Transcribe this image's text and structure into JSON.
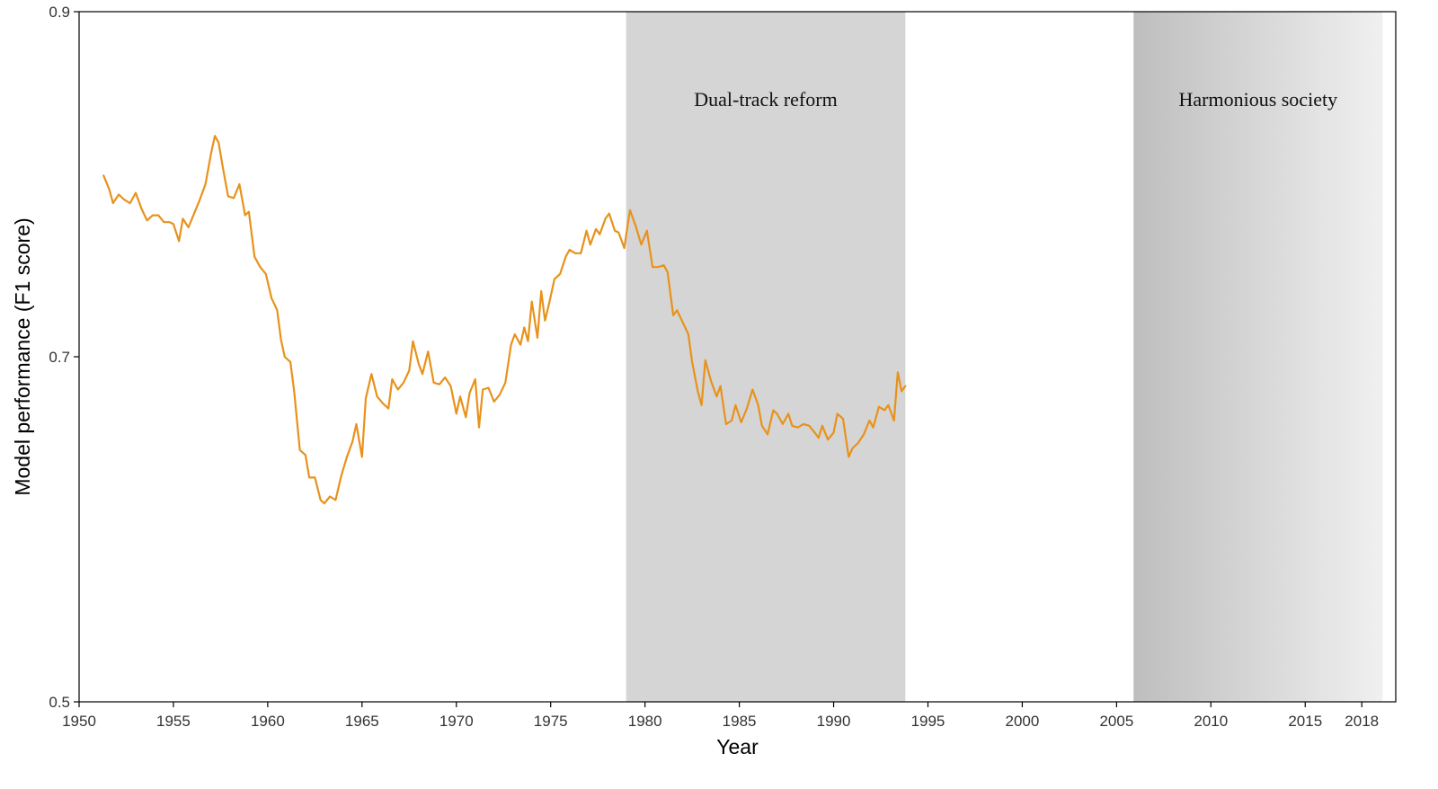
{
  "chart_data": {
    "type": "line",
    "title": "",
    "xlabel": "Year",
    "ylabel": "Model performance (F1 score)",
    "xlim": [
      1950,
      2019.8
    ],
    "ylim": [
      0.5,
      0.9
    ],
    "x_ticks": [
      1950,
      1955,
      1960,
      1965,
      1970,
      1975,
      1980,
      1985,
      1990,
      1995,
      2000,
      2005,
      2010,
      2015,
      2018
    ],
    "x_tick_labels": [
      "1950",
      "1955",
      "1960",
      "1965",
      "1970",
      "1975",
      "1980",
      "1985",
      "1990",
      "1995",
      "2000",
      "2005",
      "2010",
      "2015",
      "2018"
    ],
    "y_ticks": [
      0.5,
      0.7,
      0.9
    ],
    "y_tick_labels": [
      "0.5",
      "0.7",
      "0.9"
    ],
    "grid": false,
    "line_color": "#E8921B",
    "shaded_regions": [
      {
        "label": "Dual-track reform",
        "x_start": 1979,
        "x_end": 1993.8,
        "fill": "solid",
        "color": "#D5D5D5"
      },
      {
        "label": "Harmonious society",
        "x_start": 2005.9,
        "x_end": 2019.1,
        "fill": "gradient",
        "color_start": "#BEBEBE",
        "color_end": "#F0F0F0"
      }
    ],
    "series": [
      {
        "points": [
          [
            1951.3,
            0.805
          ],
          [
            1951.6,
            0.797
          ],
          [
            1951.8,
            0.789
          ],
          [
            1952.1,
            0.794
          ],
          [
            1952.4,
            0.791
          ],
          [
            1952.7,
            0.789
          ],
          [
            1953.0,
            0.795
          ],
          [
            1953.3,
            0.786
          ],
          [
            1953.6,
            0.779
          ],
          [
            1953.9,
            0.782
          ],
          [
            1954.2,
            0.782
          ],
          [
            1954.5,
            0.778
          ],
          [
            1954.8,
            0.778
          ],
          [
            1955.0,
            0.777
          ],
          [
            1955.3,
            0.767
          ],
          [
            1955.5,
            0.78
          ],
          [
            1955.8,
            0.775
          ],
          [
            1956.1,
            0.783
          ],
          [
            1956.4,
            0.791
          ],
          [
            1956.7,
            0.8
          ],
          [
            1957.0,
            0.818
          ],
          [
            1957.2,
            0.828
          ],
          [
            1957.4,
            0.824
          ],
          [
            1957.6,
            0.811
          ],
          [
            1957.9,
            0.793
          ],
          [
            1958.2,
            0.792
          ],
          [
            1958.5,
            0.8
          ],
          [
            1958.8,
            0.782
          ],
          [
            1959.0,
            0.784
          ],
          [
            1959.3,
            0.758
          ],
          [
            1959.6,
            0.752
          ],
          [
            1959.9,
            0.748
          ],
          [
            1960.2,
            0.734
          ],
          [
            1960.5,
            0.727
          ],
          [
            1960.7,
            0.71
          ],
          [
            1960.9,
            0.7
          ],
          [
            1961.2,
            0.697
          ],
          [
            1961.4,
            0.68
          ],
          [
            1961.7,
            0.646
          ],
          [
            1962.0,
            0.643
          ],
          [
            1962.2,
            0.63
          ],
          [
            1962.5,
            0.63
          ],
          [
            1962.8,
            0.617
          ],
          [
            1963.0,
            0.615
          ],
          [
            1963.3,
            0.619
          ],
          [
            1963.6,
            0.617
          ],
          [
            1963.9,
            0.631
          ],
          [
            1964.2,
            0.642
          ],
          [
            1964.5,
            0.651
          ],
          [
            1964.7,
            0.661
          ],
          [
            1965.0,
            0.642
          ],
          [
            1965.2,
            0.676
          ],
          [
            1965.5,
            0.69
          ],
          [
            1965.8,
            0.677
          ],
          [
            1966.1,
            0.673
          ],
          [
            1966.4,
            0.67
          ],
          [
            1966.6,
            0.687
          ],
          [
            1966.9,
            0.681
          ],
          [
            1967.2,
            0.685
          ],
          [
            1967.5,
            0.692
          ],
          [
            1967.7,
            0.709
          ],
          [
            1968.0,
            0.696
          ],
          [
            1968.2,
            0.69
          ],
          [
            1968.5,
            0.703
          ],
          [
            1968.8,
            0.685
          ],
          [
            1969.1,
            0.684
          ],
          [
            1969.4,
            0.688
          ],
          [
            1969.7,
            0.683
          ],
          [
            1970.0,
            0.667
          ],
          [
            1970.2,
            0.677
          ],
          [
            1970.5,
            0.665
          ],
          [
            1970.7,
            0.679
          ],
          [
            1971.0,
            0.687
          ],
          [
            1971.2,
            0.659
          ],
          [
            1971.4,
            0.681
          ],
          [
            1971.7,
            0.682
          ],
          [
            1972.0,
            0.674
          ],
          [
            1972.3,
            0.678
          ],
          [
            1972.6,
            0.685
          ],
          [
            1972.9,
            0.707
          ],
          [
            1973.1,
            0.713
          ],
          [
            1973.4,
            0.707
          ],
          [
            1973.6,
            0.717
          ],
          [
            1973.8,
            0.709
          ],
          [
            1974.0,
            0.732
          ],
          [
            1974.3,
            0.711
          ],
          [
            1974.5,
            0.738
          ],
          [
            1974.7,
            0.721
          ],
          [
            1974.9,
            0.73
          ],
          [
            1975.2,
            0.745
          ],
          [
            1975.5,
            0.748
          ],
          [
            1975.8,
            0.758
          ],
          [
            1976.0,
            0.762
          ],
          [
            1976.3,
            0.76
          ],
          [
            1976.6,
            0.76
          ],
          [
            1976.9,
            0.773
          ],
          [
            1977.1,
            0.765
          ],
          [
            1977.4,
            0.774
          ],
          [
            1977.6,
            0.771
          ],
          [
            1977.9,
            0.78
          ],
          [
            1978.1,
            0.783
          ],
          [
            1978.4,
            0.773
          ],
          [
            1978.6,
            0.772
          ],
          [
            1978.9,
            0.763
          ],
          [
            1979.2,
            0.785
          ],
          [
            1979.5,
            0.776
          ],
          [
            1979.8,
            0.765
          ],
          [
            1980.1,
            0.773
          ],
          [
            1980.4,
            0.752
          ],
          [
            1980.7,
            0.752
          ],
          [
            1981.0,
            0.753
          ],
          [
            1981.2,
            0.749
          ],
          [
            1981.5,
            0.724
          ],
          [
            1981.7,
            0.727
          ],
          [
            1982.0,
            0.72
          ],
          [
            1982.3,
            0.713
          ],
          [
            1982.5,
            0.697
          ],
          [
            1982.8,
            0.68
          ],
          [
            1983.0,
            0.672
          ],
          [
            1983.2,
            0.698
          ],
          [
            1983.5,
            0.686
          ],
          [
            1983.8,
            0.677
          ],
          [
            1984.0,
            0.683
          ],
          [
            1984.3,
            0.661
          ],
          [
            1984.6,
            0.663
          ],
          [
            1984.8,
            0.672
          ],
          [
            1985.1,
            0.662
          ],
          [
            1985.4,
            0.67
          ],
          [
            1985.7,
            0.681
          ],
          [
            1986.0,
            0.672
          ],
          [
            1986.2,
            0.66
          ],
          [
            1986.5,
            0.655
          ],
          [
            1986.8,
            0.669
          ],
          [
            1987.0,
            0.667
          ],
          [
            1987.3,
            0.661
          ],
          [
            1987.6,
            0.667
          ],
          [
            1987.8,
            0.66
          ],
          [
            1988.1,
            0.659
          ],
          [
            1988.4,
            0.661
          ],
          [
            1988.7,
            0.66
          ],
          [
            1989.0,
            0.656
          ],
          [
            1989.2,
            0.653
          ],
          [
            1989.4,
            0.66
          ],
          [
            1989.7,
            0.652
          ],
          [
            1990.0,
            0.656
          ],
          [
            1990.2,
            0.667
          ],
          [
            1990.5,
            0.664
          ],
          [
            1990.8,
            0.642
          ],
          [
            1991.0,
            0.647
          ],
          [
            1991.3,
            0.65
          ],
          [
            1991.6,
            0.655
          ],
          [
            1991.9,
            0.663
          ],
          [
            1992.1,
            0.659
          ],
          [
            1992.4,
            0.671
          ],
          [
            1992.7,
            0.669
          ],
          [
            1992.9,
            0.672
          ],
          [
            1993.2,
            0.663
          ],
          [
            1993.4,
            0.691
          ],
          [
            1993.6,
            0.68
          ],
          [
            1993.8,
            0.683
          ]
        ]
      }
    ]
  }
}
